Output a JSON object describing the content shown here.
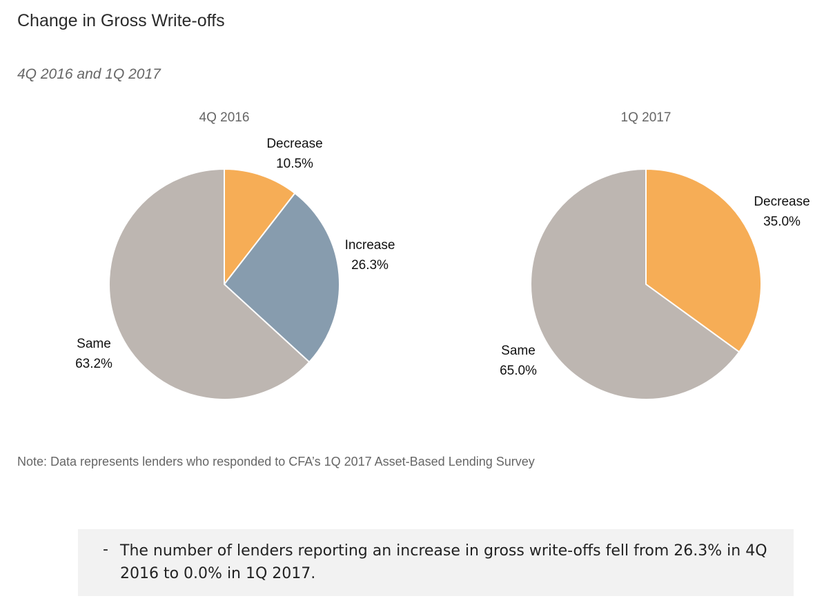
{
  "title": "Change in Gross Write-offs",
  "subtitle": "4Q 2016 and 1Q 2017",
  "note": "Note: Data represents lenders who responded to CFA’s 1Q 2017 Asset-Based Lending Survey",
  "callout": {
    "bullet": "-",
    "text": "The number of lenders reporting an increase in gross write-offs fell from 26.3% in 4Q 2016 to 0.0% in 1Q 2017."
  },
  "chart_data": [
    {
      "type": "pie",
      "title": "4Q 2016",
      "slices": [
        {
          "label": "Decrease",
          "value": 10.5,
          "display": "10.5%",
          "color": "#f6ad56"
        },
        {
          "label": "Increase",
          "value": 26.3,
          "display": "26.3%",
          "color": "#879cae"
        },
        {
          "label": "Same",
          "value": 63.2,
          "display": "63.2%",
          "color": "#bdb6b1"
        }
      ]
    },
    {
      "type": "pie",
      "title": "1Q 2017",
      "slices": [
        {
          "label": "Decrease",
          "value": 35.0,
          "display": "35.0%",
          "color": "#f6ad56"
        },
        {
          "label": "Same",
          "value": 65.0,
          "display": "65.0%",
          "color": "#bdb6b1"
        }
      ]
    }
  ]
}
